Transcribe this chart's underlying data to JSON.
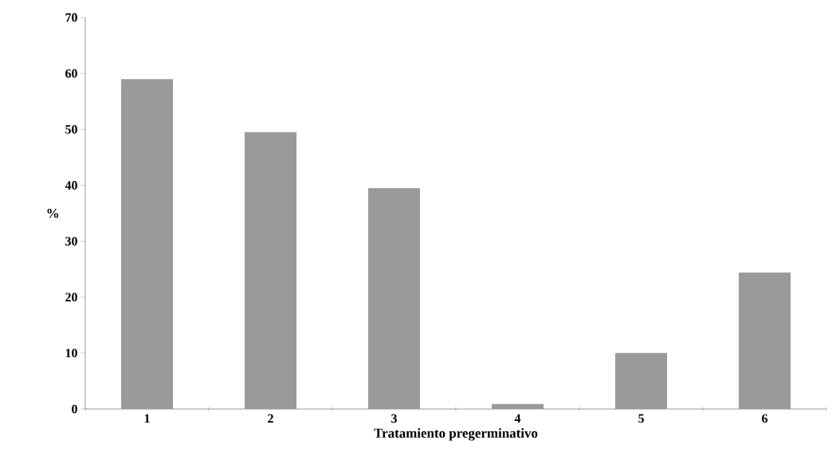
{
  "chart_data": {
    "type": "bar",
    "xlabel": "Tratamiento pregerminativo",
    "ylabel": "%",
    "categories": [
      "1",
      "2",
      "3",
      "4",
      "5",
      "6"
    ],
    "values": [
      59,
      49.5,
      39.5,
      0.9,
      10,
      24.4
    ],
    "color": "#9a9a9a",
    "ylim": [
      0,
      70
    ],
    "yticks": [
      0,
      10,
      20,
      30,
      40,
      50,
      60,
      70
    ],
    "grid": false
  }
}
